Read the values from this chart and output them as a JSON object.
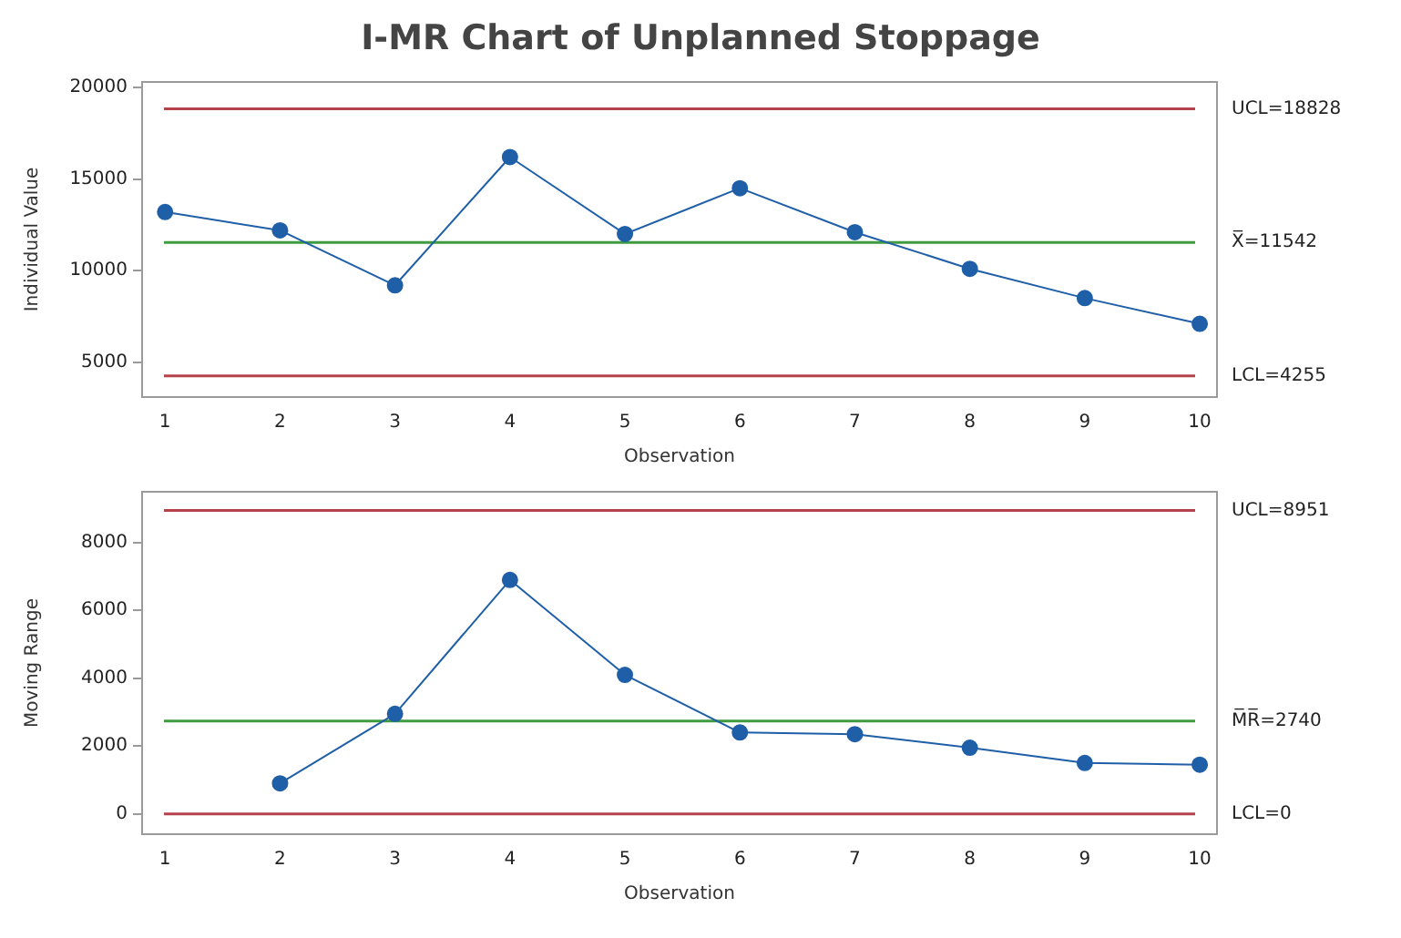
{
  "chart_data": [
    {
      "type": "line",
      "title": "I-MR Chart of Unplanned Stoppage",
      "xlabel": "Observation",
      "ylabel": "Individual Value",
      "x": [
        1,
        2,
        3,
        4,
        5,
        6,
        7,
        8,
        9,
        10
      ],
      "series": [
        {
          "color": "#1f5fa8",
          "values": [
            13200,
            12200,
            9200,
            16200,
            12000,
            14500,
            12100,
            10100,
            8500,
            7100
          ]
        }
      ],
      "xlim": [
        0.8,
        10.15
      ],
      "xticks": [
        1,
        2,
        3,
        4,
        5,
        6,
        7,
        8,
        9,
        10
      ],
      "ylim": [
        3100,
        20300
      ],
      "yticks": [
        5000,
        10000,
        15000,
        20000
      ],
      "ref_lines": [
        {
          "axis": "y",
          "value": 18828,
          "label": "UCL=18828",
          "color": "#b5424a"
        },
        {
          "axis": "y",
          "value": 11542,
          "label": "X̅=11542",
          "color": "#3f9b3f"
        },
        {
          "axis": "y",
          "value": 4255,
          "label": "LCL=4255",
          "color": "#b5424a"
        }
      ],
      "grid": false,
      "legend": false,
      "marker": "circle",
      "line_style": "solid"
    },
    {
      "type": "line",
      "xlabel": "Observation",
      "ylabel": "Moving Range",
      "series": [
        {
          "color": "#1f5fa8",
          "x": [
            2,
            3,
            4,
            5,
            6,
            7,
            8,
            9,
            10
          ],
          "values": [
            900,
            2950,
            6900,
            4100,
            2400,
            2350,
            1950,
            1500,
            1450
          ]
        }
      ],
      "xlim": [
        0.8,
        10.15
      ],
      "xticks": [
        1,
        2,
        3,
        4,
        5,
        6,
        7,
        8,
        9,
        10
      ],
      "ylim": [
        -600,
        9500
      ],
      "yticks": [
        0,
        2000,
        4000,
        6000,
        8000
      ],
      "ref_lines": [
        {
          "axis": "y",
          "value": 8951,
          "label": "UCL=8951",
          "color": "#b5424a"
        },
        {
          "axis": "y",
          "value": 2740,
          "label": "M̅R̅=2740",
          "color": "#3f9b3f"
        },
        {
          "axis": "y",
          "value": 0,
          "label": "LCL=0",
          "color": "#b5424a"
        }
      ],
      "grid": false,
      "legend": false,
      "marker": "circle",
      "line_style": "solid"
    }
  ]
}
